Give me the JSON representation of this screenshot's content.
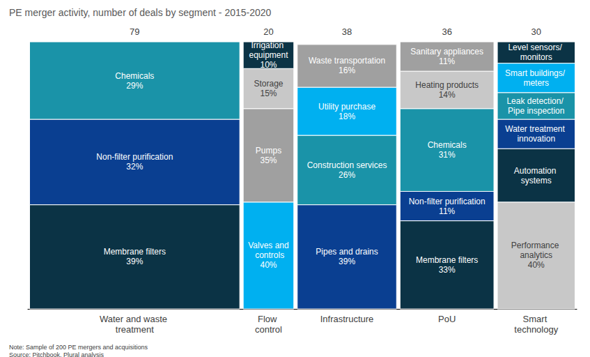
{
  "chart_data": {
    "type": "marimekko",
    "title": "PE merger activity, number of deals by segment - 2015-2020",
    "note": "Note: Sample of 200 PE mergers and acquisitions",
    "source": "Source: Pitchbook, Plural analysis",
    "stacked": true,
    "data_labels": true,
    "tick_labels": false,
    "xlim": [
      0,
      203
    ],
    "ylim": [
      0,
      100
    ],
    "columns": [
      {
        "label": "Water and waste treatment",
        "width": 79,
        "names": [
          "Membrane filters",
          "Non-filter purification",
          "Chemicals"
        ],
        "values": [
          39,
          32,
          29
        ],
        "value_labels": [
          "39%",
          "32%",
          "29%"
        ],
        "colors": [
          "#0b3345",
          "#0a3f91",
          "#1a93a8"
        ]
      },
      {
        "label": "Flow control",
        "width": 20,
        "names": [
          "Valves and controls",
          "Pumps",
          "Storage",
          "Irrigation equipment"
        ],
        "values": [
          40,
          35,
          15,
          10
        ],
        "value_labels": [
          "40%",
          "35%",
          "15%",
          "10%"
        ],
        "colors": [
          "#00b0f0",
          "#a0a0a0",
          "#c8c8c8",
          "#0b3345"
        ]
      },
      {
        "label": "Infrastructure",
        "width": 38,
        "names": [
          "Pipes and drains",
          "Construction services",
          "Utility purchase",
          "Waste transportation"
        ],
        "values": [
          39,
          26,
          18,
          16
        ],
        "value_labels": [
          "39%",
          "26%",
          "18%",
          "16%"
        ],
        "colors": [
          "#0a3f91",
          "#1a93a8",
          "#00b0f0",
          "#a0a0a0"
        ]
      },
      {
        "label": "PoU",
        "width": 36,
        "names": [
          "Membrane filters",
          "Non-filter purification",
          "Chemicals",
          "Heating products",
          "Sanitary appliances"
        ],
        "values": [
          33,
          11,
          31,
          14,
          11
        ],
        "value_labels": [
          "33%",
          "11%",
          "31%",
          "14%",
          "11%"
        ],
        "colors": [
          "#0b3345",
          "#0a3f91",
          "#1a93a8",
          "#c8c8c8",
          "#a0a0a0"
        ]
      },
      {
        "label": "Smart technology",
        "width": 30,
        "names": [
          "Performance analytics",
          "Automation systems",
          "Water treatment innovation",
          "Leak detection/ Pipe inspection",
          "Smart buildings/ meters",
          "Level sensors/ monitors"
        ],
        "values": [
          40,
          20,
          11,
          10,
          11,
          8
        ],
        "value_labels": [
          "40%",
          null,
          null,
          null,
          null,
          null
        ],
        "colors": [
          "#c8c8c8",
          "#0b3345",
          "#0a3f91",
          "#1a93a8",
          "#00b0f0",
          "#0b3345"
        ]
      }
    ]
  }
}
